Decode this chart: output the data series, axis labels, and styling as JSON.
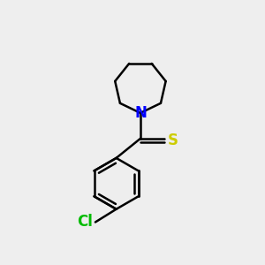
{
  "background_color": "#eeeeee",
  "bond_color": "#000000",
  "N_color": "#0000ff",
  "S_color": "#cccc00",
  "Cl_color": "#00bb00",
  "line_width": 1.8,
  "figsize": [
    3.0,
    3.0
  ],
  "dpi": 100,
  "xlim": [
    -2.2,
    2.2
  ],
  "ylim": [
    -2.8,
    2.8
  ]
}
